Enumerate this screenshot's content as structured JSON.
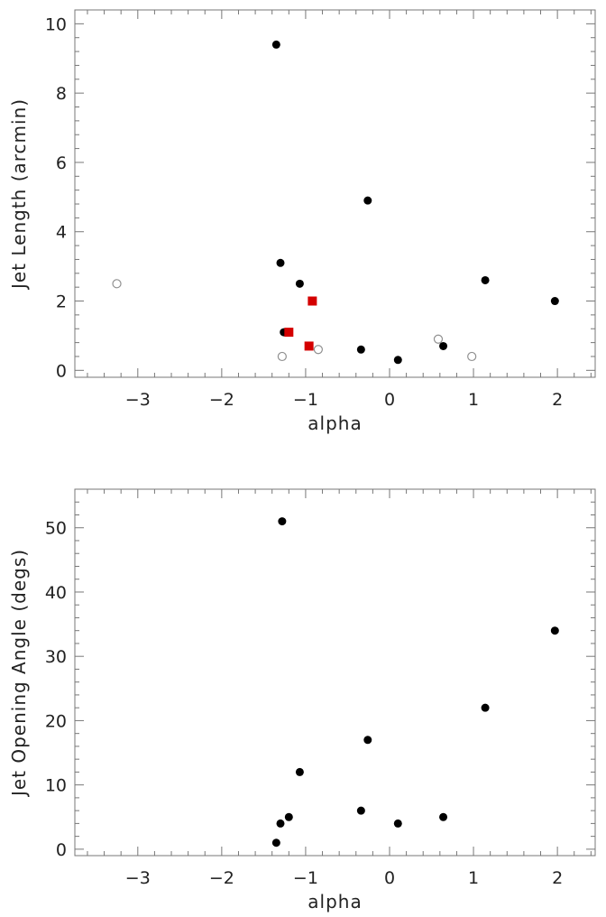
{
  "chart_data": [
    {
      "type": "scatter",
      "xlabel": "alpha",
      "ylabel": "Jet Length (arcmin)",
      "xlim": [
        -3.75,
        2.45
      ],
      "ylim": [
        -0.2,
        10.4
      ],
      "xticks": [
        -3,
        -2,
        -1,
        0,
        1,
        2
      ],
      "yticks": [
        0,
        2,
        4,
        6,
        8,
        10
      ],
      "grid": false,
      "series": [
        {
          "marker": "filled-circle",
          "color": "#000000",
          "points": [
            [
              -1.35,
              9.4
            ],
            [
              -0.26,
              4.9
            ],
            [
              -1.3,
              3.1
            ],
            [
              -1.07,
              2.5
            ],
            [
              1.14,
              2.6
            ],
            [
              1.97,
              2.0
            ],
            [
              -1.26,
              1.1
            ],
            [
              -0.34,
              0.6
            ],
            [
              0.64,
              0.7
            ],
            [
              0.1,
              0.3
            ]
          ]
        },
        {
          "marker": "open-circle",
          "color": "#909090",
          "points": [
            [
              -3.25,
              2.5
            ],
            [
              -1.28,
              0.4
            ],
            [
              -0.85,
              0.6
            ],
            [
              0.58,
              0.9
            ],
            [
              0.98,
              0.4
            ]
          ]
        },
        {
          "marker": "filled-square",
          "color": "#d40000",
          "points": [
            [
              -0.92,
              2.0
            ],
            [
              -1.2,
              1.1
            ],
            [
              -0.96,
              0.7
            ]
          ]
        }
      ]
    },
    {
      "type": "scatter",
      "xlabel": "alpha",
      "ylabel": "Jet Opening Angle (degs)",
      "xlim": [
        -3.75,
        2.45
      ],
      "ylim": [
        -1,
        56
      ],
      "xticks": [
        -3,
        -2,
        -1,
        0,
        1,
        2
      ],
      "yticks": [
        0,
        10,
        20,
        30,
        40,
        50
      ],
      "grid": false,
      "series": [
        {
          "marker": "filled-circle",
          "color": "#000000",
          "points": [
            [
              -1.28,
              51
            ],
            [
              1.97,
              34
            ],
            [
              1.14,
              22
            ],
            [
              -0.26,
              17
            ],
            [
              -1.07,
              12
            ],
            [
              -0.34,
              6
            ],
            [
              -1.2,
              5
            ],
            [
              0.64,
              5
            ],
            [
              -1.3,
              4
            ],
            [
              0.1,
              4
            ],
            [
              -1.35,
              1
            ]
          ]
        }
      ]
    }
  ]
}
